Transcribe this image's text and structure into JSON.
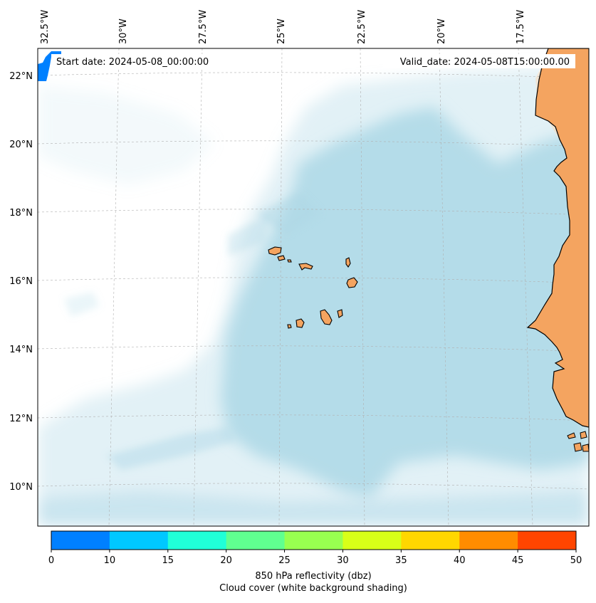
{
  "map": {
    "start_date": "Start date: 2024-05-08_00:00:00",
    "valid_date": "Valid_date: 2024-05-08T15:00:00.00",
    "lon_labels": [
      "32.5°W",
      "30°W",
      "27.5°W",
      "25°W",
      "22.5°W",
      "20°W",
      "17.5°W"
    ],
    "lat_labels": [
      "22°N",
      "20°N",
      "18°N",
      "16°N",
      "14°N",
      "12°N",
      "10°N"
    ],
    "colors": {
      "land": "#f4a460",
      "cloud": "#add8e6",
      "grid": "#b0b0b0"
    }
  },
  "colorbar": {
    "ticks": [
      "0",
      "10",
      "15",
      "20",
      "25",
      "30",
      "35",
      "40",
      "45",
      "50"
    ],
    "colors": [
      "#0080ff",
      "#00c8ff",
      "#20ffd8",
      "#60ff90",
      "#98ff50",
      "#d8ff18",
      "#ffd700",
      "#ff8c00",
      "#ff4500"
    ],
    "label_line1": "850 hPa reflectivity (dbz)",
    "label_line2": "Cloud cover (white background shading)"
  }
}
